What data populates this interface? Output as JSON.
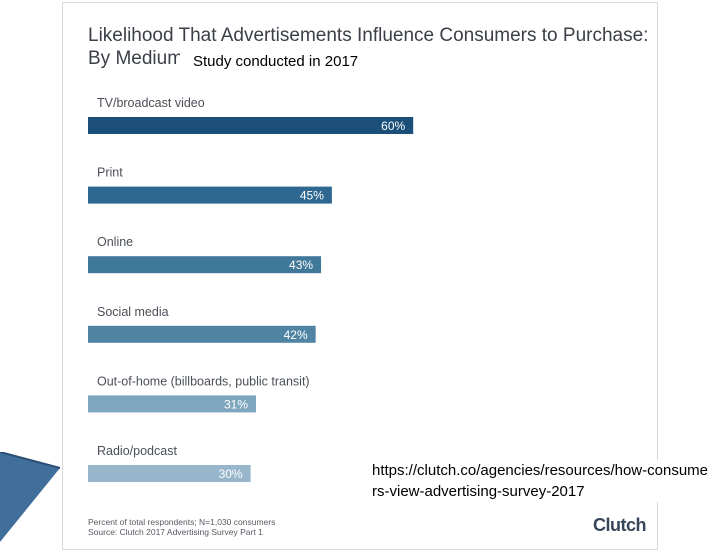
{
  "chart_data": {
    "type": "bar",
    "orientation": "horizontal",
    "title": "Likelihood That Advertisements Influence Consumers to Purchase: By Medium",
    "categories": [
      "TV/broadcast video",
      "Print",
      "Online",
      "Social media",
      "Out-of-home (billboards, public transit)",
      "Radio/podcast"
    ],
    "values": [
      60,
      45,
      43,
      42,
      31,
      30
    ],
    "value_labels": [
      "60%",
      "45%",
      "43%",
      "42%",
      "31%",
      "30%"
    ],
    "colors": [
      "#1b4f7a",
      "#2e6790",
      "#3f7899",
      "#4f85a3",
      "#7ea6bf",
      "#97b6cb"
    ],
    "xlim": [
      0,
      100
    ],
    "xlabel": "",
    "ylabel": "",
    "grid": false
  },
  "header": {
    "title_line1": "Likelihood That Advertisements Influence Consumers to Purchase:",
    "title_line2": "By Medium",
    "note": "Study conducted in 2017"
  },
  "footer": {
    "footnote_line1": "Percent of total respondents; N=1,030 consumers",
    "footnote_line2": "Source: Clutch 2017 Advertising Survey Part 1",
    "logo_text": "Clutch",
    "url": "https://clutch.co/agencies/resources/how-consumers-view-advertising-survey-2017"
  }
}
